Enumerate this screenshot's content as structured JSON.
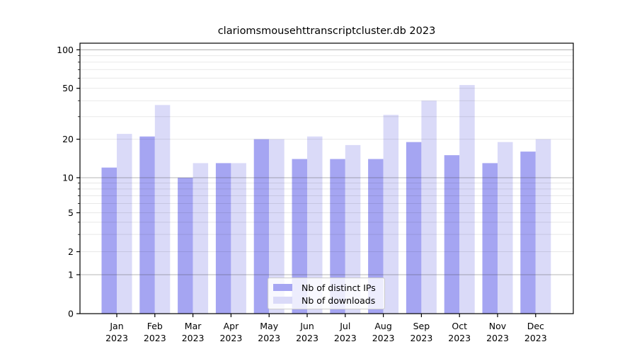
{
  "title": "clariomsmousehttranscriptcluster.db 2023",
  "chart_data": {
    "type": "bar",
    "categories": [
      {
        "month": "Jan",
        "year": "2023"
      },
      {
        "month": "Feb",
        "year": "2023"
      },
      {
        "month": "Mar",
        "year": "2023"
      },
      {
        "month": "Apr",
        "year": "2023"
      },
      {
        "month": "May",
        "year": "2023"
      },
      {
        "month": "Jun",
        "year": "2023"
      },
      {
        "month": "Jul",
        "year": "2023"
      },
      {
        "month": "Aug",
        "year": "2023"
      },
      {
        "month": "Sep",
        "year": "2023"
      },
      {
        "month": "Oct",
        "year": "2023"
      },
      {
        "month": "Nov",
        "year": "2023"
      },
      {
        "month": "Dec",
        "year": "2023"
      }
    ],
    "series": [
      {
        "name": "Nb of distinct IPs",
        "color": "#a5a5f2",
        "values": [
          12,
          21,
          10,
          13,
          20,
          14,
          14,
          14,
          19,
          15,
          13,
          16
        ]
      },
      {
        "name": "Nb of downloads",
        "color": "#dadaf8",
        "values": [
          22,
          37,
          13,
          13,
          20,
          21,
          18,
          31,
          40,
          53,
          19,
          20
        ]
      }
    ],
    "title": "clariomsmousehttranscriptcluster.db 2023",
    "xlabel": "",
    "ylabel": "",
    "y_scale": "symlog",
    "ylim": [
      0,
      100
    ],
    "ytick_labels": [
      "0",
      "1",
      "2",
      "5",
      "10",
      "20",
      "50",
      "100"
    ],
    "ytick_values": [
      0,
      1,
      2,
      5,
      10,
      20,
      50,
      100
    ],
    "grid": true,
    "legend_position": "bottom-center"
  }
}
